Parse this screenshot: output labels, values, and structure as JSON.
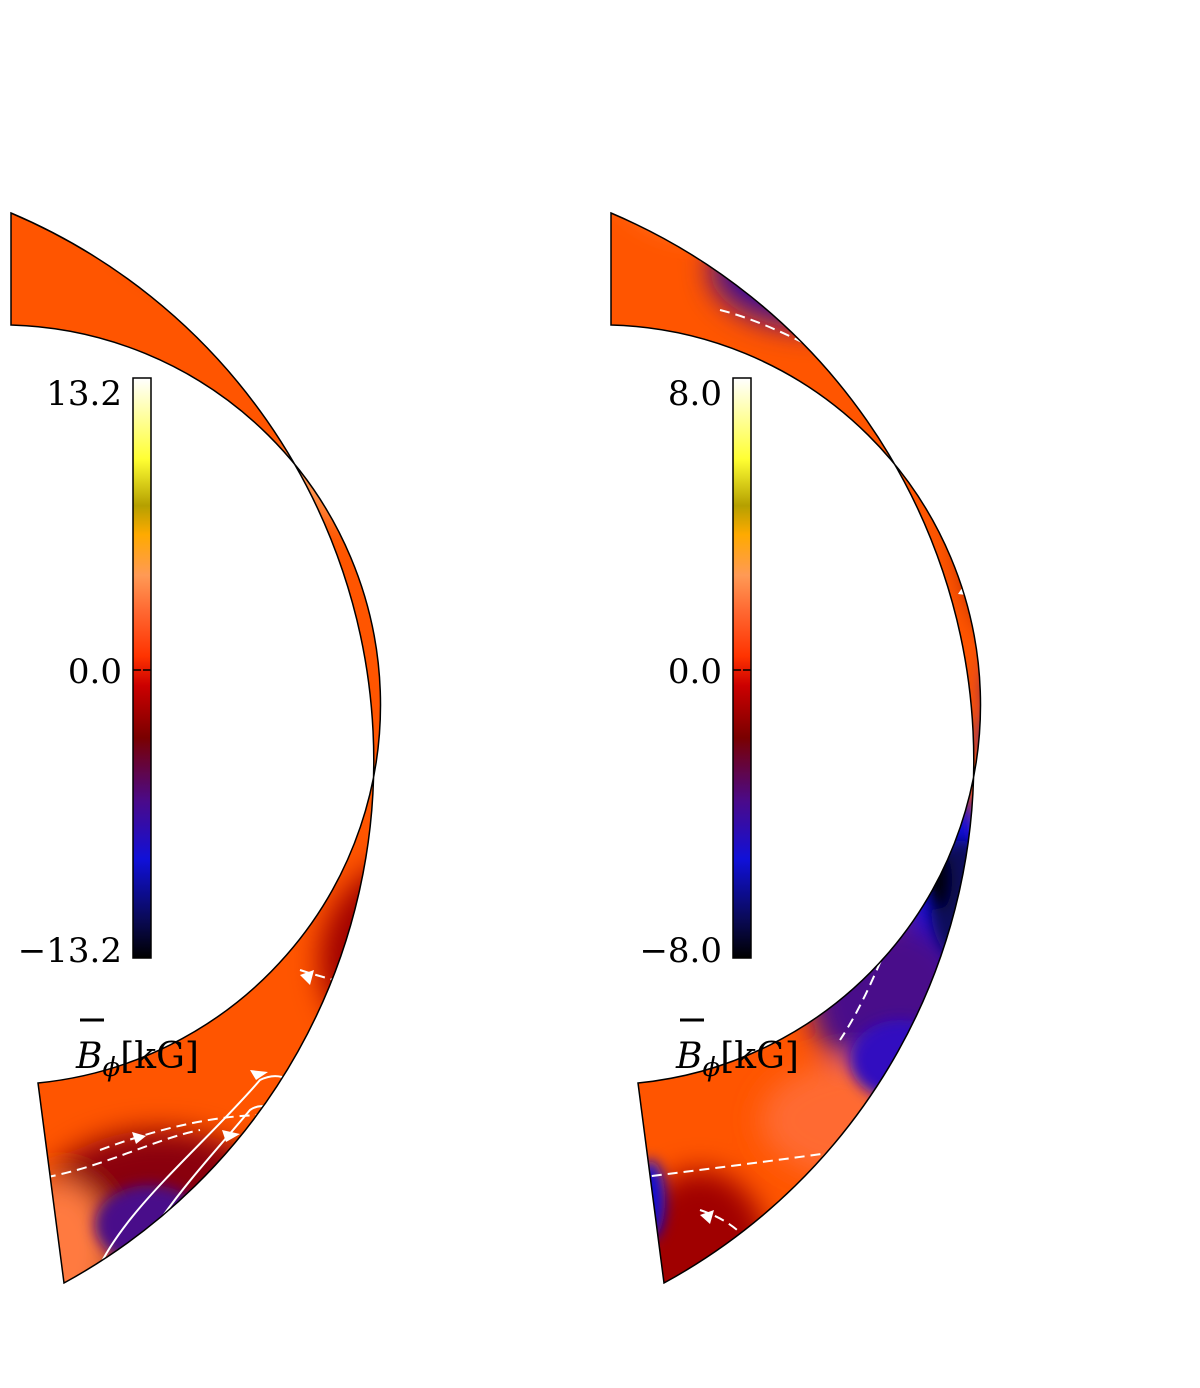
{
  "colors": {
    "background": "#ffffff",
    "colormap": [
      "#000000",
      "#0a0a5a",
      "#1010c8",
      "#4a0a8a",
      "#7a0000",
      "#cc0000",
      "#ff3300",
      "#ff6a33",
      "#ff9a55",
      "#ffaa00",
      "#b5a000",
      "#ffff33",
      "#ffffff"
    ],
    "contour": "#ffffff"
  },
  "panels": [
    {
      "id": "left",
      "colorbar": {
        "max_label": "13.2",
        "mid_label": "0.0",
        "min_label": "−13.2",
        "quantity_label": "B",
        "subscript": "ϕ",
        "unit": "[kG]"
      }
    },
    {
      "id": "right",
      "colorbar": {
        "max_label": "8.0",
        "mid_label": "0.0",
        "min_label": "−8.0",
        "quantity_label": "B",
        "subscript": "ϕ",
        "unit": "[kG]"
      }
    }
  ]
}
